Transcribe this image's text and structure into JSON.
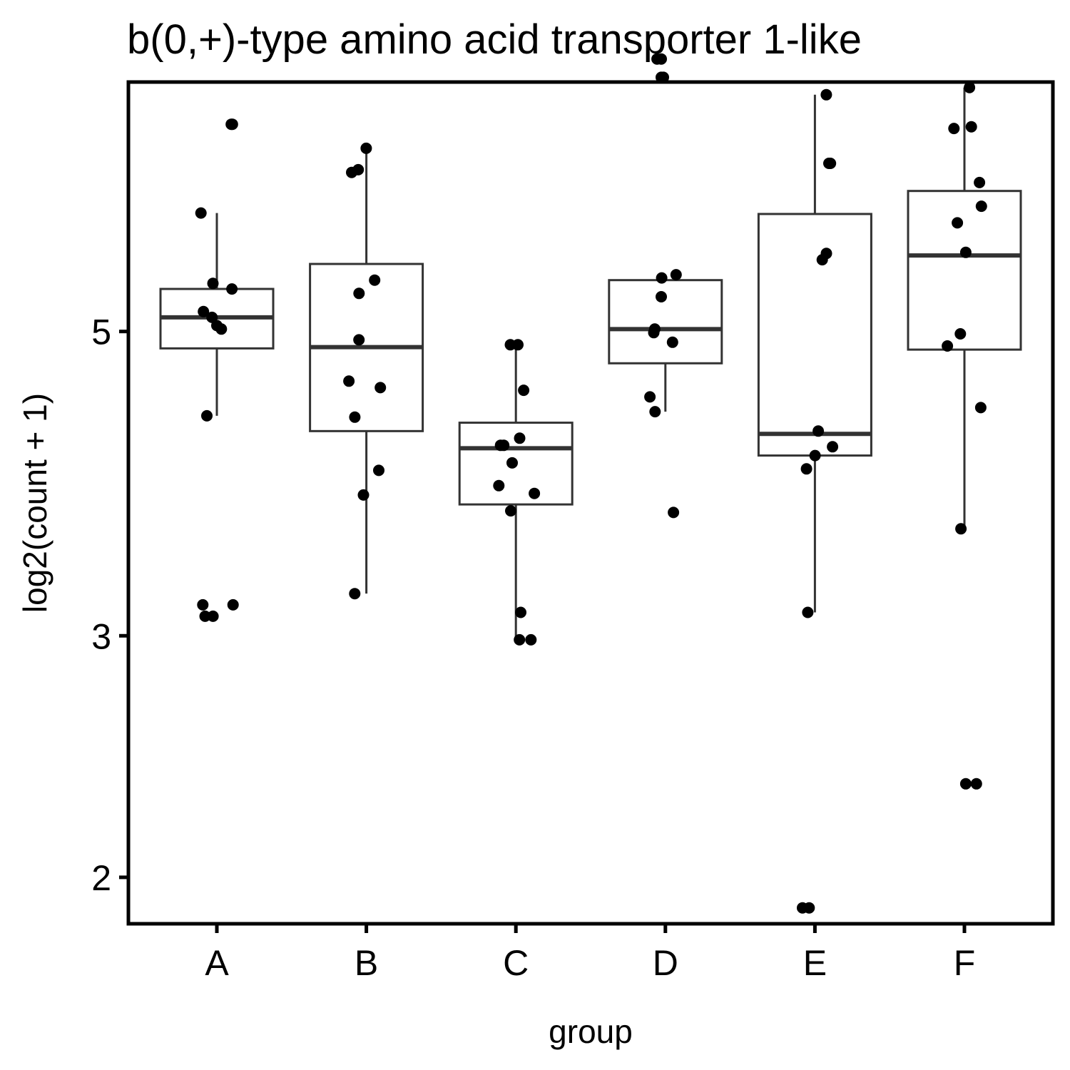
{
  "chart_data": {
    "type": "box",
    "title": "b(0,+)-type amino acid transporter 1-like",
    "xlabel": "group",
    "ylabel": "log2(count + 1)",
    "y_scale": "log",
    "ylim": [
      1.85,
      7.6
    ],
    "y_ticks": [
      {
        "value": 2,
        "label": "2"
      },
      {
        "value": 3,
        "label": "3"
      },
      {
        "value": 5,
        "label": "5"
      }
    ],
    "categories": [
      "A",
      "B",
      "C",
      "D",
      "E",
      "F"
    ],
    "boxes": [
      {
        "group": "A",
        "lower_whisker": 4.34,
        "q1": 4.86,
        "median": 5.12,
        "q3": 5.37,
        "upper_whisker": 6.1
      },
      {
        "group": "B",
        "lower_whisker": 3.22,
        "q1": 4.23,
        "median": 4.87,
        "q3": 5.6,
        "upper_whisker": 6.77
      },
      {
        "group": "C",
        "lower_whisker": 2.98,
        "q1": 3.74,
        "median": 4.11,
        "q3": 4.29,
        "upper_whisker": 4.89
      },
      {
        "group": "D",
        "lower_whisker": 4.37,
        "q1": 4.74,
        "median": 5.02,
        "q3": 5.45,
        "upper_whisker": 5.47
      },
      {
        "group": "E",
        "lower_whisker": 3.12,
        "q1": 4.06,
        "median": 4.21,
        "q3": 6.09,
        "upper_whisker": 7.44
      },
      {
        "group": "F",
        "lower_whisker": 3.59,
        "q1": 4.85,
        "median": 5.68,
        "q3": 6.33,
        "upper_whisker": 7.53
      }
    ],
    "points": [
      {
        "group": "A",
        "values": [
          7.08,
          7.08,
          6.1,
          5.42,
          5.37,
          5.17,
          5.12,
          5.05,
          5.02,
          4.34,
          3.16,
          3.16,
          3.1,
          3.1
        ]
      },
      {
        "group": "B",
        "values": [
          6.8,
          6.56,
          6.53,
          5.45,
          5.33,
          4.93,
          4.6,
          4.55,
          4.33,
          3.96,
          3.8,
          3.22
        ]
      },
      {
        "group": "C",
        "values": [
          4.89,
          4.89,
          4.53,
          4.18,
          4.13,
          4.13,
          4.01,
          3.86,
          3.81,
          3.7,
          3.12,
          2.98,
          2.98
        ]
      },
      {
        "group": "D",
        "values": [
          7.9,
          7.9,
          7.66,
          7.66,
          5.5,
          5.47,
          5.3,
          5.02,
          4.99,
          4.91,
          4.48,
          4.37,
          3.69
        ]
      },
      {
        "group": "E",
        "values": [
          7.44,
          6.63,
          6.63,
          5.7,
          5.64,
          4.23,
          4.06,
          4.12,
          3.97,
          3.12,
          1.9,
          1.9
        ]
      },
      {
        "group": "F",
        "values": [
          7.53,
          7.05,
          7.03,
          6.42,
          6.17,
          6.0,
          5.71,
          4.98,
          4.88,
          4.4,
          3.59,
          2.34,
          2.34
        ]
      }
    ],
    "style": {
      "box_stroke": "#333333",
      "box_fill": "#ffffff",
      "point_color": "#000000",
      "panel_border": "#000000",
      "grid": false,
      "legend": "none"
    }
  }
}
